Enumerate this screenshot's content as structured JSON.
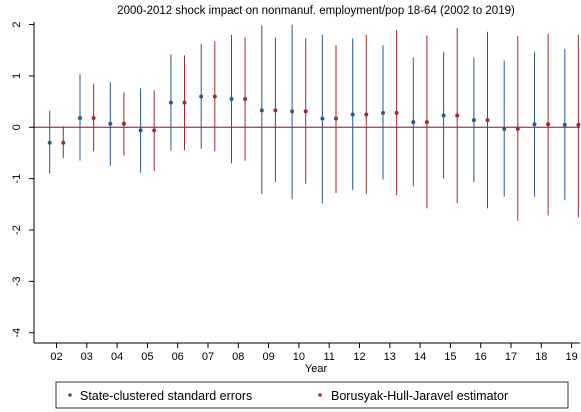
{
  "chart_data": {
    "type": "scatter",
    "title": "2000-2012 shock impact on nonmanuf. employment/pop 18-64 (2002 to 2019)",
    "xlabel": "Year",
    "ylabel": "",
    "ylim": [
      -4.2,
      2.05
    ],
    "yticks": [
      2,
      1,
      0,
      -1,
      -2,
      -3,
      -4
    ],
    "categories": [
      "02",
      "03",
      "04",
      "05",
      "06",
      "07",
      "08",
      "09",
      "10",
      "11",
      "12",
      "13",
      "14",
      "15",
      "16",
      "17",
      "18",
      "19"
    ],
    "zero_line": 0,
    "zero_line_color": "#b5446e",
    "grid": false,
    "legend_position": "bottom",
    "series": [
      {
        "name": "State-clustered standard errors",
        "color": "#2b5a8a",
        "values": [
          -0.3,
          0.18,
          0.07,
          -0.06,
          0.48,
          0.6,
          0.55,
          0.33,
          0.31,
          0.17,
          0.25,
          0.28,
          0.1,
          0.23,
          0.14,
          -0.03,
          0.06,
          0.05
        ],
        "ci_low": [
          -0.9,
          -0.65,
          -0.75,
          -0.88,
          -0.45,
          -0.42,
          -0.7,
          -1.3,
          -1.4,
          -1.48,
          -1.22,
          -1.02,
          -1.15,
          -1.0,
          -1.07,
          -1.35,
          -1.35,
          -1.42
        ],
        "ci_high": [
          0.32,
          1.03,
          0.88,
          0.76,
          1.42,
          1.63,
          1.8,
          1.98,
          2.0,
          1.8,
          1.73,
          1.6,
          1.36,
          1.47,
          1.36,
          1.3,
          1.47,
          1.53
        ]
      },
      {
        "name": "Borusyak-Hull-Jaravel estimator",
        "color": "#9e2b33",
        "values": [
          -0.3,
          0.18,
          0.07,
          -0.06,
          0.48,
          0.6,
          0.55,
          0.33,
          0.31,
          0.17,
          0.25,
          0.28,
          0.1,
          0.23,
          0.14,
          -0.03,
          0.06,
          0.05
        ],
        "ci_low": [
          -0.6,
          -0.47,
          -0.55,
          -0.85,
          -0.45,
          -0.47,
          -0.65,
          -1.06,
          -1.1,
          -1.28,
          -1.3,
          -1.32,
          -1.58,
          -1.48,
          -1.58,
          -1.82,
          -1.72,
          -1.75
        ],
        "ci_high": [
          0.02,
          0.85,
          0.68,
          0.72,
          1.4,
          1.67,
          1.75,
          1.75,
          1.73,
          1.6,
          1.8,
          1.9,
          1.79,
          1.93,
          1.86,
          1.78,
          1.82,
          1.8
        ]
      }
    ]
  }
}
